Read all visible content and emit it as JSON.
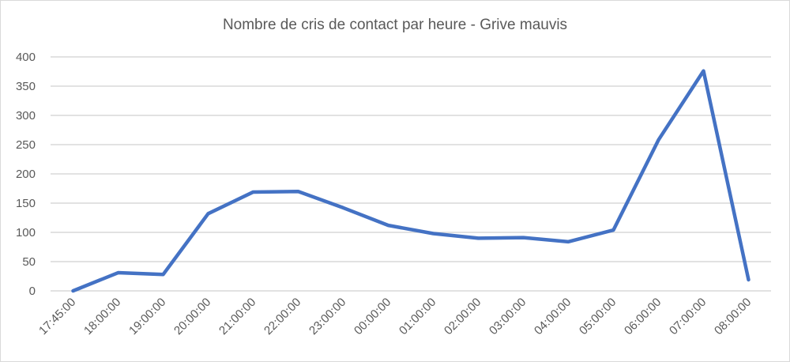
{
  "chart_data": {
    "type": "line",
    "title": "Nombre de cris de contact par heure - Grive mauvis",
    "xlabel": "",
    "ylabel": "",
    "categories": [
      "17:45:00",
      "18:00:00",
      "19:00:00",
      "20:00:00",
      "21:00:00",
      "22:00:00",
      "23:00:00",
      "00:00:00",
      "01:00:00",
      "02:00:00",
      "03:00:00",
      "04:00:00",
      "05:00:00",
      "06:00:00",
      "07:00:00",
      "08:00:00"
    ],
    "series": [
      {
        "values": [
          0,
          31,
          28,
          132,
          169,
          170,
          142,
          112,
          98,
          90,
          91,
          84,
          104,
          258,
          376,
          19
        ],
        "color": "#4472c4"
      }
    ],
    "ylim": [
      0,
      400
    ],
    "yticks": [
      0,
      50,
      100,
      150,
      200,
      250,
      300,
      350,
      400
    ],
    "grid": true,
    "legend": "none"
  }
}
